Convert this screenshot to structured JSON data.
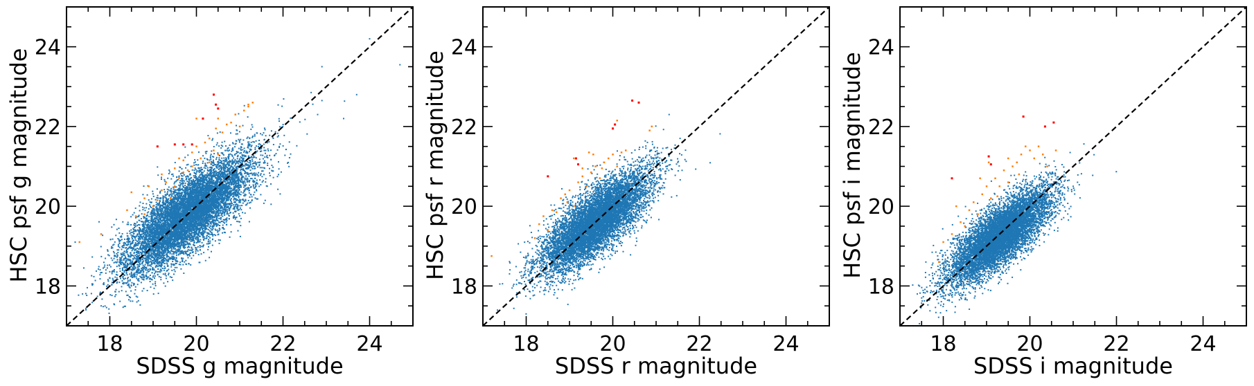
{
  "colors": {
    "main": "#1f77b4",
    "outlier": "#ff7f0e",
    "extreme": "#ff0000",
    "identity_line": "#000000"
  },
  "chart_data": [
    {
      "type": "scatter",
      "title": "",
      "xlabel": "SDSS g magnitude",
      "ylabel": "HSC psf g magnitude",
      "xlim": [
        17,
        25
      ],
      "ylim": [
        17,
        25
      ],
      "xticks": [
        18,
        20,
        22,
        24
      ],
      "yticks": [
        18,
        20,
        22,
        24
      ],
      "minor_tick_step": 0.5,
      "grid": false,
      "reference_line": {
        "style": "dashed",
        "x": [
          17,
          25
        ],
        "y": [
          17,
          25
        ]
      },
      "series": [
        {
          "color": "main",
          "marker_size": 2,
          "density": {
            "count": 9000,
            "center": [
              19.8,
              19.8
            ],
            "sigma_along": 0.7,
            "sigma_across": 0.35,
            "seed": 11
          },
          "points": [
            [
              24.7,
              23.55
            ],
            [
              24.0,
              24.2
            ],
            [
              23.4,
              22.2
            ],
            [
              22.9,
              23.5
            ],
            [
              22.9,
              22.65
            ],
            [
              23.7,
              22.8
            ],
            [
              17.2,
              19.1
            ],
            [
              17.4,
              18.45
            ],
            [
              17.8,
              17.5
            ],
            [
              22.8,
              22.3
            ],
            [
              21.6,
              21.4
            ]
          ]
        },
        {
          "color": "outlier",
          "marker_size": 2.5,
          "points": [
            [
              17.3,
              19.1
            ],
            [
              17.8,
              19.3
            ],
            [
              18.4,
              19.9
            ],
            [
              18.6,
              19.75
            ],
            [
              18.8,
              20.2
            ],
            [
              18.9,
              20.5
            ],
            [
              19.1,
              20.15
            ],
            [
              19.2,
              20.4
            ],
            [
              19.3,
              20.6
            ],
            [
              19.4,
              20.2
            ],
            [
              19.5,
              20.5
            ],
            [
              19.6,
              20.7
            ],
            [
              19.7,
              20.85
            ],
            [
              19.8,
              20.9
            ],
            [
              19.9,
              21.0
            ],
            [
              19.5,
              20.95
            ],
            [
              19.7,
              21.15
            ],
            [
              19.9,
              21.35
            ],
            [
              20.0,
              21.5
            ],
            [
              20.1,
              21.2
            ],
            [
              20.2,
              21.6
            ],
            [
              20.3,
              21.7
            ],
            [
              20.4,
              21.4
            ],
            [
              20.3,
              21.1
            ],
            [
              20.5,
              21.3
            ],
            [
              20.6,
              21.85
            ],
            [
              20.45,
              21.95
            ],
            [
              20.7,
              22.05
            ],
            [
              20.8,
              22.1
            ],
            [
              20.9,
              22.3
            ],
            [
              21.0,
              22.0
            ],
            [
              21.1,
              22.4
            ],
            [
              21.2,
              22.55
            ],
            [
              21.3,
              22.6
            ],
            [
              21.2,
              22.5
            ],
            [
              18.8,
              19.8
            ],
            [
              19.0,
              20.0
            ],
            [
              19.2,
              20.8
            ],
            [
              18.5,
              20.35
            ],
            [
              20.0,
              22.2
            ],
            [
              20.5,
              22.2
            ],
            [
              19.6,
              21.2
            ]
          ]
        },
        {
          "color": "extreme",
          "marker_size": 3,
          "points": [
            [
              19.1,
              21.5
            ],
            [
              19.5,
              21.55
            ],
            [
              19.7,
              21.55
            ],
            [
              19.9,
              21.55
            ],
            [
              20.15,
              22.2
            ],
            [
              20.4,
              22.8
            ],
            [
              20.45,
              22.55
            ],
            [
              20.5,
              22.45
            ]
          ]
        }
      ]
    },
    {
      "type": "scatter",
      "title": "",
      "xlabel": "SDSS r magnitude",
      "ylabel": "HSC psf r magnitude",
      "xlim": [
        17,
        25
      ],
      "ylim": [
        17,
        25
      ],
      "xticks": [
        18,
        20,
        22,
        24
      ],
      "yticks": [
        18,
        20,
        22,
        24
      ],
      "minor_tick_step": 0.5,
      "grid": false,
      "reference_line": {
        "style": "dashed",
        "x": [
          17,
          25
        ],
        "y": [
          17,
          25
        ]
      },
      "series": [
        {
          "color": "main",
          "marker_size": 2,
          "density": {
            "count": 8000,
            "center": [
              19.6,
              19.6
            ],
            "sigma_along": 0.6,
            "sigma_across": 0.3,
            "seed": 23
          },
          "points": [
            [
              21.6,
              20.9
            ],
            [
              21.3,
              22.3
            ],
            [
              21.5,
              21.1
            ],
            [
              17.7,
              18.0
            ],
            [
              17.9,
              18.2
            ],
            [
              21.0,
              21.2
            ],
            [
              20.8,
              21.6
            ]
          ]
        },
        {
          "color": "outlier",
          "marker_size": 2.5,
          "points": [
            [
              17.2,
              18.75
            ],
            [
              18.2,
              19.2
            ],
            [
              18.3,
              19.55
            ],
            [
              18.4,
              19.75
            ],
            [
              18.5,
              19.4
            ],
            [
              18.6,
              19.9
            ],
            [
              18.8,
              20.2
            ],
            [
              18.9,
              20.3
            ],
            [
              19.0,
              20.4
            ],
            [
              19.1,
              20.0
            ],
            [
              19.2,
              20.6
            ],
            [
              19.3,
              20.75
            ],
            [
              19.4,
              20.5
            ],
            [
              19.5,
              20.85
            ],
            [
              19.6,
              21.0
            ],
            [
              19.7,
              20.7
            ],
            [
              19.8,
              21.1
            ],
            [
              19.9,
              21.2
            ],
            [
              20.0,
              21.3
            ],
            [
              20.1,
              21.0
            ],
            [
              20.2,
              21.35
            ],
            [
              20.3,
              21.4
            ],
            [
              19.1,
              21.2
            ],
            [
              19.3,
              20.95
            ],
            [
              18.95,
              20.1
            ],
            [
              19.75,
              20.95
            ],
            [
              20.1,
              22.15
            ],
            [
              20.85,
              21.9
            ],
            [
              20.9,
              22.0
            ],
            [
              19.55,
              21.3
            ],
            [
              19.45,
              21.35
            ],
            [
              18.7,
              19.85
            ]
          ]
        },
        {
          "color": "extreme",
          "marker_size": 3,
          "points": [
            [
              18.5,
              20.75
            ],
            [
              19.15,
              21.2
            ],
            [
              19.2,
              21.05
            ],
            [
              20.0,
              21.95
            ],
            [
              20.05,
              22.05
            ],
            [
              20.45,
              22.65
            ],
            [
              20.6,
              22.6
            ]
          ]
        }
      ]
    },
    {
      "type": "scatter",
      "title": "",
      "xlabel": "SDSS i magnitude",
      "ylabel": "HSC psf i magnitude",
      "xlim": [
        17,
        25
      ],
      "ylim": [
        17,
        25
      ],
      "xticks": [
        18,
        20,
        22,
        24
      ],
      "yticks": [
        18,
        20,
        22,
        24
      ],
      "minor_tick_step": 0.5,
      "grid": false,
      "reference_line": {
        "style": "dashed",
        "x": [
          17,
          25
        ],
        "y": [
          17,
          25
        ]
      },
      "series": [
        {
          "color": "main",
          "marker_size": 2,
          "density": {
            "count": 8000,
            "center": [
              19.3,
              19.25
            ],
            "sigma_along": 0.55,
            "sigma_across": 0.28,
            "seed": 37
          },
          "points": [
            [
              21.0,
              20.5
            ],
            [
              17.5,
              17.7
            ],
            [
              17.4,
              17.8
            ],
            [
              20.8,
              20.3
            ],
            [
              21.1,
              20.6
            ],
            [
              17.8,
              18.3
            ]
          ]
        },
        {
          "color": "outlier",
          "marker_size": 2.5,
          "points": [
            [
              17.9,
              18.6
            ],
            [
              18.0,
              19.1
            ],
            [
              18.2,
              19.3
            ],
            [
              18.4,
              19.6
            ],
            [
              18.5,
              19.5
            ],
            [
              18.6,
              19.9
            ],
            [
              18.7,
              20.1
            ],
            [
              18.8,
              19.8
            ],
            [
              18.9,
              20.3
            ],
            [
              19.0,
              20.5
            ],
            [
              19.1,
              20.2
            ],
            [
              19.2,
              20.7
            ],
            [
              19.3,
              20.5
            ],
            [
              19.4,
              20.9
            ],
            [
              19.5,
              20.6
            ],
            [
              19.6,
              21.0
            ],
            [
              19.7,
              21.1
            ],
            [
              19.8,
              21.3
            ],
            [
              19.9,
              21.5
            ],
            [
              20.0,
              21.4
            ],
            [
              20.1,
              21.2
            ],
            [
              20.2,
              21.5
            ],
            [
              20.3,
              21.3
            ],
            [
              20.4,
              21.0
            ],
            [
              20.6,
              21.4
            ],
            [
              19.05,
              21.1
            ],
            [
              19.5,
              21.2
            ],
            [
              19.25,
              20.25
            ],
            [
              18.3,
              20.0
            ],
            [
              18.85,
              20.7
            ],
            [
              19.75,
              20.8
            ]
          ]
        },
        {
          "color": "extreme",
          "marker_size": 3,
          "points": [
            [
              18.2,
              20.7
            ],
            [
              19.05,
              21.25
            ],
            [
              19.1,
              21.05
            ],
            [
              19.85,
              22.25
            ],
            [
              20.35,
              22.0
            ],
            [
              20.55,
              22.1
            ]
          ]
        }
      ]
    }
  ]
}
